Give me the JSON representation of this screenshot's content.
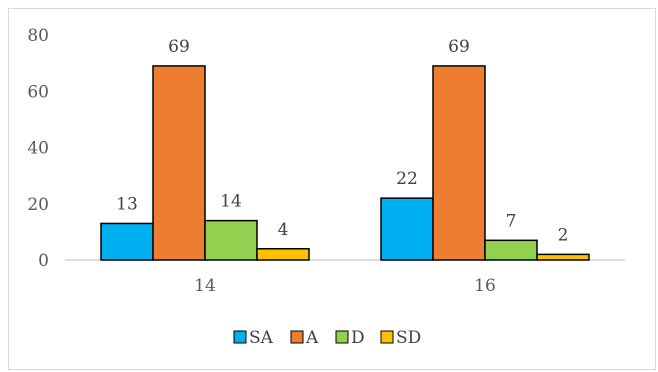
{
  "chart_data": {
    "type": "bar",
    "title": "",
    "xlabel": "",
    "ylabel": "",
    "categories": [
      "14",
      "16"
    ],
    "series": [
      {
        "name": "SA",
        "color": "#00B0F0",
        "values": [
          13,
          22
        ]
      },
      {
        "name": "A",
        "color": "#ED7D31",
        "values": [
          69,
          69
        ]
      },
      {
        "name": "D",
        "color": "#92D050",
        "values": [
          14,
          7
        ]
      },
      {
        "name": "SD",
        "color": "#FFC000",
        "values": [
          4,
          2
        ]
      }
    ],
    "ylim": [
      0,
      80
    ],
    "yticks": [
      "0",
      "20",
      "40",
      "60",
      "80"
    ],
    "grid": false,
    "legend": "bottom",
    "data_labels": true
  }
}
